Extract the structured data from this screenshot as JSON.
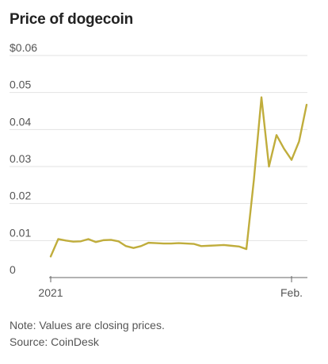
{
  "chart_data": {
    "type": "line",
    "title": "Price of dogecoin",
    "xlabel": "",
    "ylabel": "",
    "ylim": [
      0,
      0.06
    ],
    "y_ticks": [
      0,
      0.01,
      0.02,
      0.03,
      0.04,
      0.05,
      0.06
    ],
    "y_tick_labels": [
      "0",
      "0.01",
      "0.02",
      "0.03",
      "0.04",
      "0.05",
      "$0.06"
    ],
    "x_ticks": [
      {
        "x": "2020-12-31",
        "label": "2021"
      },
      {
        "x": "2021-02-01",
        "label": "Feb."
      }
    ],
    "grid": true,
    "legend": "none",
    "series": [
      {
        "color": "#c0ad3c",
        "points": [
          {
            "x": "2020-12-31",
            "y": 0.0057
          },
          {
            "x": "2021-01-01",
            "y": 0.0104
          },
          {
            "x": "2021-01-02",
            "y": 0.01
          },
          {
            "x": "2021-01-03",
            "y": 0.0097
          },
          {
            "x": "2021-01-04",
            "y": 0.0098
          },
          {
            "x": "2021-01-05",
            "y": 0.0104
          },
          {
            "x": "2021-01-06",
            "y": 0.0096
          },
          {
            "x": "2021-01-07",
            "y": 0.0101
          },
          {
            "x": "2021-01-08",
            "y": 0.0102
          },
          {
            "x": "2021-01-09",
            "y": 0.0098
          },
          {
            "x": "2021-01-10",
            "y": 0.0085
          },
          {
            "x": "2021-01-11",
            "y": 0.008
          },
          {
            "x": "2021-01-12",
            "y": 0.0085
          },
          {
            "x": "2021-01-13",
            "y": 0.0094
          },
          {
            "x": "2021-01-14",
            "y": 0.0093
          },
          {
            "x": "2021-01-15",
            "y": 0.0092
          },
          {
            "x": "2021-01-16",
            "y": 0.0092
          },
          {
            "x": "2021-01-17",
            "y": 0.0093
          },
          {
            "x": "2021-01-18",
            "y": 0.0092
          },
          {
            "x": "2021-01-19",
            "y": 0.0091
          },
          {
            "x": "2021-01-20",
            "y": 0.0085
          },
          {
            "x": "2021-01-21",
            "y": 0.0086
          },
          {
            "x": "2021-01-22",
            "y": 0.0087
          },
          {
            "x": "2021-01-23",
            "y": 0.0088
          },
          {
            "x": "2021-01-24",
            "y": 0.0086
          },
          {
            "x": "2021-01-25",
            "y": 0.0084
          },
          {
            "x": "2021-01-26",
            "y": 0.0077
          },
          {
            "x": "2021-01-27",
            "y": 0.0265
          },
          {
            "x": "2021-01-28",
            "y": 0.0487
          },
          {
            "x": "2021-01-29",
            "y": 0.03
          },
          {
            "x": "2021-01-30",
            "y": 0.0385
          },
          {
            "x": "2021-01-31",
            "y": 0.0348
          },
          {
            "x": "2021-02-01",
            "y": 0.0318
          },
          {
            "x": "2021-02-02",
            "y": 0.0368
          },
          {
            "x": "2021-02-03",
            "y": 0.0467
          }
        ]
      }
    ]
  },
  "notes": {
    "note": "Note: Values are closing prices.",
    "source": "Source: CoinDesk"
  }
}
